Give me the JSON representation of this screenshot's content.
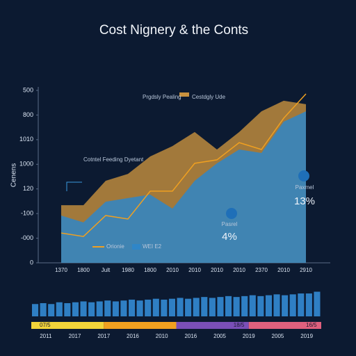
{
  "chart_data": [
    {
      "type": "area",
      "title": "Cost Nignery & the Conts",
      "y_label": "Cenens",
      "categories": [
        "1370",
        "1800",
        "Jult",
        "1980",
        "1800",
        "2010",
        "2010",
        "2010",
        "2010",
        "2370",
        "2010",
        "2910"
      ],
      "series": [
        {
          "name": "Cestdgly Ude",
          "kind": "area",
          "color": "#c8913e",
          "values": [
            234,
            234,
            333,
            361,
            432,
            474,
            531,
            460,
            531,
            615,
            658,
            644
          ]
        },
        {
          "name": "WEI E2",
          "kind": "area",
          "color": "#2f86c8",
          "values": [
            192,
            164,
            248,
            263,
            277,
            220,
            333,
            404,
            460,
            446,
            573,
            615
          ]
        },
        {
          "name": "Orionie",
          "kind": "line",
          "color": "#f0a020",
          "values": [
            121,
            107,
            192,
            178,
            291,
            291,
            404,
            418,
            488,
            460,
            587,
            686
          ]
        }
      ],
      "ylim": [
        0,
        700
      ],
      "yticks": [
        0,
        {
          "value": 100,
          "label": "-000"
        },
        {
          "value": 200,
          "label": "-100"
        },
        {
          "value": 300,
          "label": "120"
        },
        {
          "value": 400,
          "label": "1000"
        },
        {
          "value": 500,
          "label": "1010"
        },
        {
          "value": 600,
          "label": "800"
        },
        {
          "value": 700,
          "label": "500"
        }
      ],
      "annotations": [
        {
          "text": "Prgdsly Pealing"
        },
        {
          "text": "Cotntel Feeding Dyetant"
        },
        {
          "text": "Pasrel",
          "value_text": "4%"
        },
        {
          "text": "Paxmel",
          "value_text": "13%"
        }
      ]
    },
    {
      "type": "bar",
      "color": "#2f7fc4",
      "ylim": [
        0,
        30
      ],
      "values": [
        14,
        15,
        14,
        16,
        15,
        16,
        17,
        16,
        17,
        18,
        17,
        18,
        19,
        18,
        19,
        20,
        19,
        20,
        21,
        20,
        21,
        22,
        21,
        22,
        23,
        22,
        23,
        24,
        23,
        24,
        25,
        24,
        25,
        26,
        26,
        28
      ],
      "segments": [
        {
          "label": "07/5",
          "color": "#f2d43a"
        },
        {
          "label": "",
          "color": "#f0a020"
        },
        {
          "label": "18/5",
          "color": "#7a4fb8"
        },
        {
          "label": "16/5",
          "color": "#e0607e"
        }
      ],
      "x_labels": [
        "2011",
        "2017",
        "2017",
        "2016",
        "2010",
        "2016",
        "2005",
        "2019",
        "2005",
        "2019"
      ]
    }
  ]
}
